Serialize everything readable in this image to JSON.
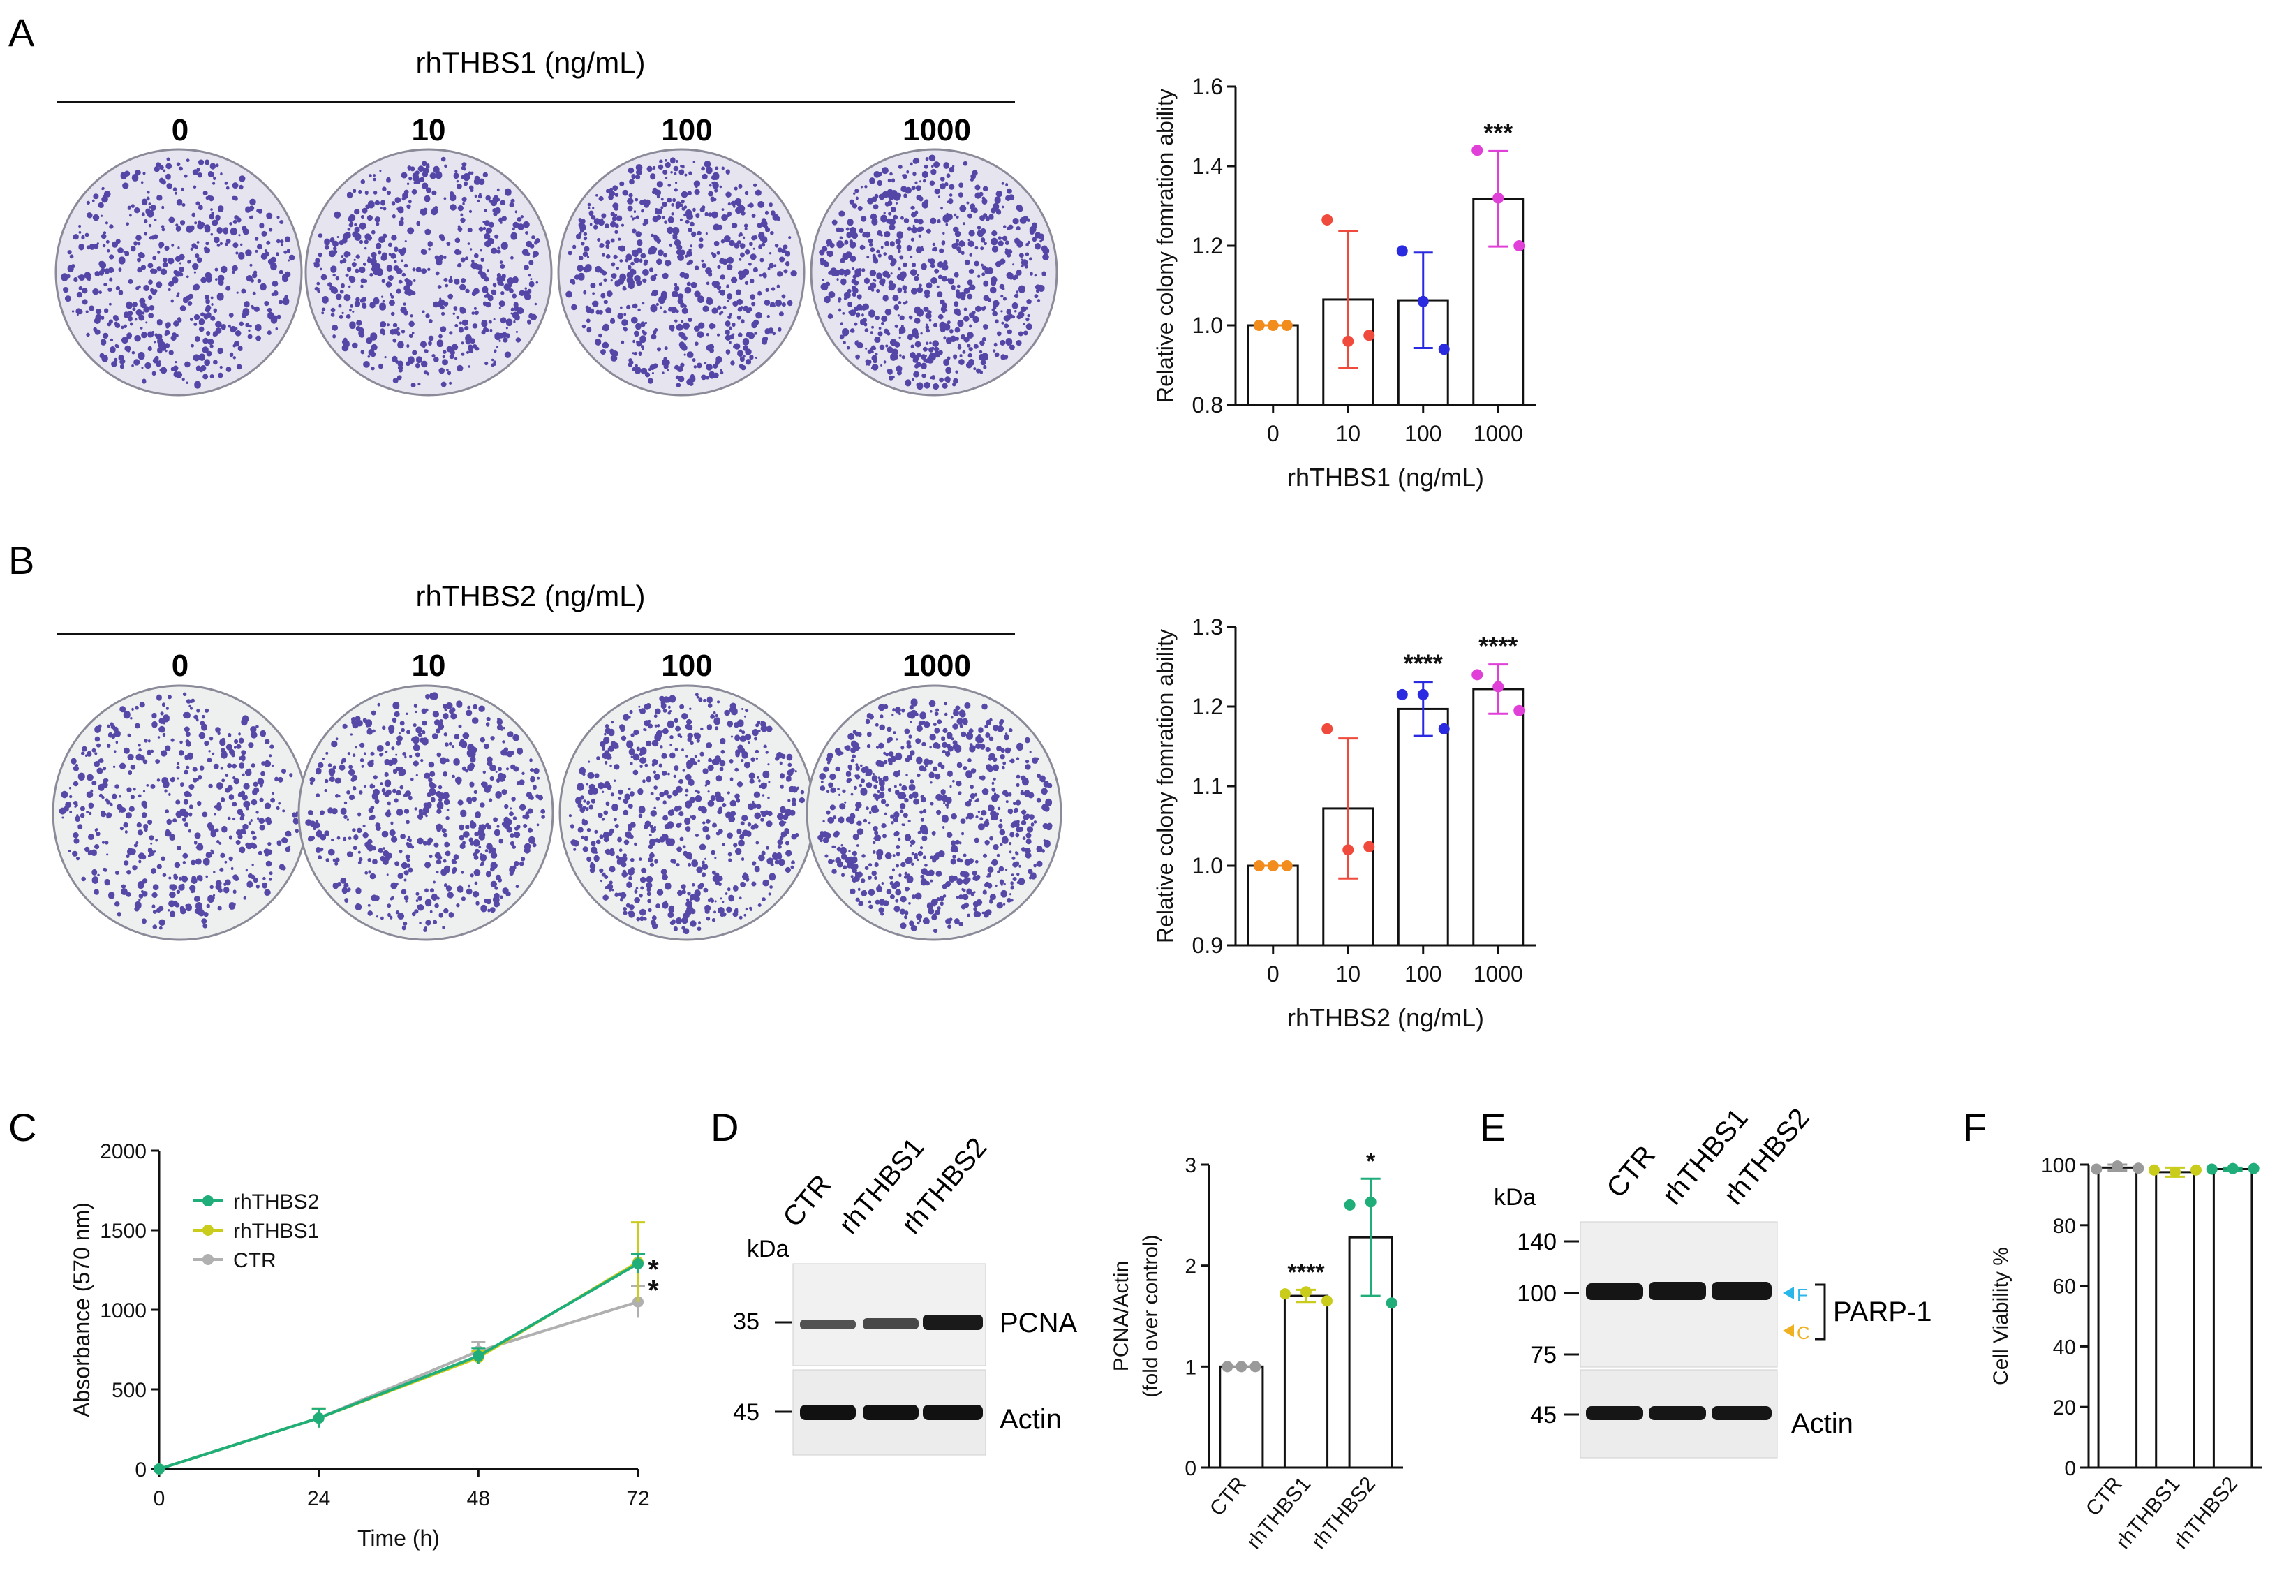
{
  "panels": {
    "A": {
      "letter": "A",
      "treatment_label": "rhTHBS1 (ng/mL)",
      "doses": [
        "0",
        "10",
        "100",
        "1000"
      ],
      "chart": {
        "type": "bar",
        "categories": [
          "0",
          "10",
          "100",
          "1000"
        ],
        "values": [
          1.0,
          1.065,
          1.063,
          1.318
        ],
        "errors": [
          0.0,
          0.172,
          0.12,
          0.12
        ],
        "points": [
          [
            1.0,
            1.0,
            1.0
          ],
          [
            1.265,
            0.96,
            0.975
          ],
          [
            1.187,
            1.06,
            0.94
          ],
          [
            1.44,
            1.32,
            1.2
          ]
        ],
        "point_colors": [
          "#f28c1c",
          "#ef4a3c",
          "#2a2ae0",
          "#e040d8"
        ],
        "significance": [
          "",
          "",
          "",
          "***"
        ],
        "ylabel": "Relative colony fomration ability",
        "xlabel": "rhTHBS1 (ng/mL)",
        "ylim": [
          0.8,
          1.6
        ],
        "yticks": [
          "0.8",
          "1.0",
          "1.2",
          "1.4",
          "1.6"
        ]
      }
    },
    "B": {
      "letter": "B",
      "treatment_label": "rhTHBS2 (ng/mL)",
      "doses": [
        "0",
        "10",
        "100",
        "1000"
      ],
      "chart": {
        "type": "bar",
        "categories": [
          "0",
          "10",
          "100",
          "1000"
        ],
        "values": [
          1.0,
          1.072,
          1.197,
          1.222
        ],
        "errors": [
          0.0,
          0.088,
          0.034,
          0.031
        ],
        "points": [
          [
            1.0,
            1.0,
            1.0
          ],
          [
            1.172,
            1.02,
            1.024
          ],
          [
            1.215,
            1.215,
            1.172
          ],
          [
            1.24,
            1.225,
            1.195
          ]
        ],
        "point_colors": [
          "#f28c1c",
          "#ef4a3c",
          "#2a2ae0",
          "#e040d8"
        ],
        "significance": [
          "",
          "",
          "****",
          "****"
        ],
        "ylabel": "Relative colony fomration ability",
        "xlabel": "rhTHBS2 (ng/mL)",
        "ylim": [
          0.9,
          1.3
        ],
        "yticks": [
          "0.9",
          "1.0",
          "1.1",
          "1.2",
          "1.3"
        ]
      }
    },
    "C": {
      "letter": "C",
      "chart": {
        "type": "line",
        "x": [
          0,
          24,
          48,
          72
        ],
        "series": [
          {
            "name": "rhTHBS2",
            "color": "#1fae7a",
            "values": [
              0,
              320,
              710,
              1290
            ],
            "errors": [
              0,
              60,
              50,
              60
            ]
          },
          {
            "name": "rhTHBS1",
            "color": "#c9cc1a",
            "values": [
              0,
              320,
              700,
              1300
            ],
            "errors": [
              0,
              60,
              40,
              250
            ]
          },
          {
            "name": "CTR",
            "color": "#b0b0b0",
            "values": [
              0,
              320,
              740,
              1050
            ],
            "errors": [
              0,
              60,
              60,
              100
            ]
          }
        ],
        "significance": [
          "*",
          "*"
        ],
        "ylabel": "Absorbance (570 nm)",
        "xlabel": "Time (h)",
        "xticks": [
          "0",
          "24",
          "48",
          "72"
        ],
        "yticks": [
          "0",
          "500",
          "1000",
          "1500",
          "2000"
        ],
        "ylim": [
          0,
          2000
        ],
        "xlim": [
          0,
          72
        ]
      }
    },
    "D": {
      "letter": "D",
      "blot": {
        "kda_label": "kDa",
        "lanes": [
          "CTR",
          "rhTHBS1",
          "rhTHBS2"
        ],
        "marker_top": "35",
        "marker_bottom": "45",
        "band_top": "PCNA",
        "band_bottom": "Actin"
      },
      "chart": {
        "type": "bar",
        "categories": [
          "CTR",
          "rhTHBS1",
          "rhTHBS2"
        ],
        "values": [
          1.0,
          1.7,
          2.28
        ],
        "errors": [
          0.0,
          0.06,
          0.58
        ],
        "points": [
          [
            1.0,
            1.0,
            1.0
          ],
          [
            1.72,
            1.74,
            1.65
          ],
          [
            2.6,
            2.63,
            1.63
          ]
        ],
        "point_colors": [
          "#9a9a9a",
          "#c9cc1a",
          "#1fae7a"
        ],
        "significance": [
          "",
          "****",
          "*"
        ],
        "ylabel": "PCNA/Actin",
        "ylabel2": "(fold over control)",
        "ylim": [
          0,
          3
        ],
        "yticks": [
          "0",
          "1",
          "2",
          "3"
        ]
      }
    },
    "E": {
      "letter": "E",
      "blot": {
        "kda_label": "kDa",
        "lanes": [
          "CTR",
          "rhTHBS1",
          "rhTHBS2"
        ],
        "markers_top": [
          "140",
          "100",
          "75"
        ],
        "marker_bottom": "45",
        "arrow_f": "F",
        "arrow_c": "C",
        "arrow_f_color": "#29b6e8",
        "arrow_c_color": "#f0b020",
        "band_top": "PARP-1",
        "band_bottom": "Actin"
      }
    },
    "F": {
      "letter": "F",
      "chart": {
        "type": "bar",
        "categories": [
          "CTR",
          "rhTHBS1",
          "rhTHBS2"
        ],
        "values": [
          99,
          97.5,
          98.5
        ],
        "errors": [
          1,
          1.5,
          0.5
        ],
        "points": [
          [
            98.5,
            99.5,
            98.8
          ],
          [
            98.2,
            97.5,
            98.2
          ],
          [
            98.5,
            98.7,
            98.7
          ]
        ],
        "point_colors": [
          "#9a9a9a",
          "#c9cc1a",
          "#1fae7a"
        ],
        "significance": [
          "",
          "",
          ""
        ],
        "ylabel": "Cell Viability %",
        "ylim": [
          0,
          100
        ],
        "yticks": [
          "0",
          "20",
          "40",
          "60",
          "80",
          "100"
        ]
      }
    }
  }
}
